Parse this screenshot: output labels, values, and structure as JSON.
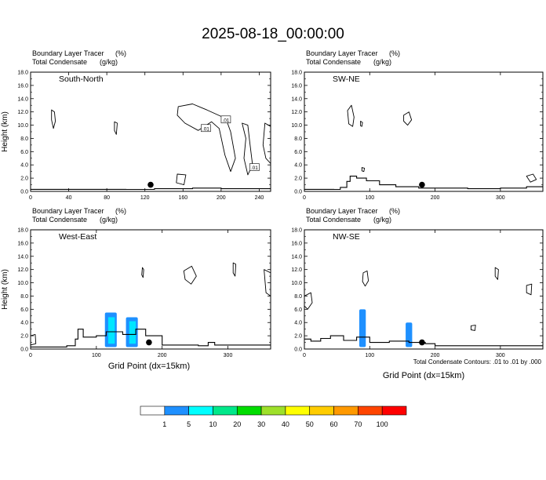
{
  "figure": {
    "title": "2025-08-18_00:00:00",
    "footer_note": "Total Condensate Contours: .01 to .01 by .000",
    "xlabel": "Grid Point (dx=15km)"
  },
  "colors": {
    "terrain": "#000000",
    "tracer_blue": "#1e90ff",
    "tracer_cyan": "#00e6ff"
  },
  "colorbar": {
    "labels": [
      "1",
      "5",
      "10",
      "20",
      "30",
      "40",
      "50",
      "60",
      "70",
      "100"
    ],
    "colors": [
      "#ffffff",
      "#1e90ff",
      "#00ffff",
      "#00e88a",
      "#00dd00",
      "#9ee02a",
      "#ffff00",
      "#ffcc00",
      "#ff9900",
      "#ff4400",
      "#ff0000"
    ]
  },
  "chart_data": [
    {
      "type": "area",
      "panel_label": "South-North",
      "subtitle_var1": "Boundary Layer Tracer",
      "subtitle_unit1": "(%)",
      "subtitle_var2": "Total Condensate",
      "subtitle_unit2": "(g/kg)",
      "ylabel": "Height (km)",
      "xlim": [
        0,
        252
      ],
      "ylim": [
        0,
        18
      ],
      "xticks": [
        0,
        40,
        80,
        120,
        160,
        200,
        240
      ],
      "yticks": [
        "0.0",
        "2.0",
        "4.0",
        "6.0",
        "8.0",
        "10.0",
        "12.0",
        "14.0",
        "16.0",
        "18.0"
      ],
      "terrain": [
        [
          0,
          0.3
        ],
        [
          100,
          0.3
        ],
        [
          130,
          0.4
        ],
        [
          170,
          0.5
        ],
        [
          200,
          0.4
        ],
        [
          252,
          0.5
        ]
      ],
      "marker": [
        126,
        1.0
      ],
      "contour_labels": [
        {
          "text": ".01",
          "x": 184,
          "y": 9.5
        },
        {
          "text": ".01",
          "x": 205,
          "y": 10.8
        },
        {
          "text": ".01",
          "x": 235,
          "y": 3.6
        }
      ],
      "clouds": [
        [
          [
            22,
            12.3
          ],
          [
            25,
            12.0
          ],
          [
            26,
            10.6
          ],
          [
            24,
            9.5
          ],
          [
            22,
            10.8
          ]
        ],
        [
          [
            88,
            10.5
          ],
          [
            91,
            10.3
          ],
          [
            90,
            8.6
          ],
          [
            88,
            9.2
          ]
        ],
        [
          [
            155,
            12.8
          ],
          [
            170,
            13.2
          ],
          [
            185,
            12.3
          ],
          [
            205,
            11.0
          ],
          [
            210,
            9.0
          ],
          [
            215,
            5.0
          ],
          [
            210,
            3.0
          ],
          [
            204,
            5.5
          ],
          [
            198,
            9.5
          ],
          [
            190,
            10.5
          ],
          [
            176,
            9.2
          ],
          [
            162,
            10.3
          ],
          [
            154,
            11.5
          ]
        ],
        [
          [
            222,
            10.3
          ],
          [
            226,
            8.0
          ],
          [
            224,
            5.0
          ],
          [
            228,
            2.5
          ],
          [
            233,
            4.0
          ],
          [
            230,
            7.5
          ],
          [
            228,
            10.0
          ]
        ],
        [
          [
            246,
            10.3
          ],
          [
            252,
            9.8
          ],
          [
            252,
            4.2
          ],
          [
            247,
            5.0
          ],
          [
            244,
            7.0
          ]
        ],
        [
          [
            154,
            2.6
          ],
          [
            163,
            2.5
          ],
          [
            161,
            1.0
          ],
          [
            153,
            1.3
          ]
        ]
      ],
      "fills": []
    },
    {
      "type": "area",
      "panel_label": "SW-NE",
      "subtitle_var1": "Boundary Layer Tracer",
      "subtitle_unit1": "(%)",
      "subtitle_var2": "Total Condensate",
      "subtitle_unit2": "(g/kg)",
      "ylabel": "",
      "xlim": [
        0,
        365
      ],
      "ylim": [
        0,
        18
      ],
      "xticks": [
        0,
        100,
        200,
        300
      ],
      "yticks": [
        "0.0",
        "2.0",
        "4.0",
        "6.0",
        "8.0",
        "10.0",
        "12.0",
        "14.0",
        "16.0",
        "18.0"
      ],
      "terrain": [
        [
          0,
          0.3
        ],
        [
          45,
          0.3
        ],
        [
          55,
          0.6
        ],
        [
          65,
          1.5
        ],
        [
          70,
          2.3
        ],
        [
          80,
          2.0
        ],
        [
          95,
          1.6
        ],
        [
          115,
          1.0
        ],
        [
          140,
          0.7
        ],
        [
          175,
          0.5
        ],
        [
          250,
          0.4
        ],
        [
          300,
          0.5
        ],
        [
          340,
          0.7
        ],
        [
          365,
          0.9
        ]
      ],
      "marker": [
        180,
        1.0
      ],
      "contour_labels": [],
      "clouds": [
        [
          [
            66,
            12.2
          ],
          [
            72,
            13.0
          ],
          [
            76,
            11.2
          ],
          [
            74,
            9.8
          ],
          [
            68,
            10.2
          ]
        ],
        [
          [
            152,
            11.5
          ],
          [
            160,
            12.0
          ],
          [
            164,
            10.8
          ],
          [
            158,
            10.0
          ],
          [
            152,
            10.6
          ]
        ],
        [
          [
            86,
            10.6
          ],
          [
            89,
            10.4
          ],
          [
            88,
            9.8
          ],
          [
            86,
            9.9
          ]
        ],
        [
          [
            340,
            2.3
          ],
          [
            350,
            2.6
          ],
          [
            355,
            1.8
          ],
          [
            346,
            1.4
          ]
        ],
        [
          [
            88,
            3.6
          ],
          [
            92,
            3.5
          ],
          [
            91,
            3.0
          ],
          [
            88,
            3.1
          ]
        ]
      ],
      "fills": []
    },
    {
      "type": "area",
      "panel_label": "West-East",
      "subtitle_var1": "Boundary Layer Tracer",
      "subtitle_unit1": "(%)",
      "subtitle_var2": "Total Condensate",
      "subtitle_unit2": "(g/kg)",
      "ylabel": "Height (km)",
      "xlim": [
        0,
        365
      ],
      "ylim": [
        0,
        18
      ],
      "xticks": [
        0,
        100,
        200,
        300
      ],
      "yticks": [
        "0.0",
        "2.0",
        "4.0",
        "6.0",
        "8.0",
        "10.0",
        "12.0",
        "14.0",
        "16.0",
        "18.0"
      ],
      "terrain": [
        [
          0,
          0.3
        ],
        [
          55,
          0.5
        ],
        [
          68,
          1.5
        ],
        [
          72,
          3.0
        ],
        [
          80,
          1.8
        ],
        [
          100,
          2.0
        ],
        [
          115,
          2.6
        ],
        [
          140,
          2.2
        ],
        [
          160,
          3.0
        ],
        [
          175,
          2.0
        ],
        [
          200,
          0.6
        ],
        [
          255,
          0.5
        ],
        [
          270,
          1.0
        ],
        [
          280,
          0.6
        ],
        [
          365,
          0.5
        ]
      ],
      "marker": [
        180,
        1.0
      ],
      "contour_labels": [],
      "clouds": [
        [
          [
            233,
            11.8
          ],
          [
            245,
            12.5
          ],
          [
            252,
            11.0
          ],
          [
            244,
            9.8
          ],
          [
            235,
            10.5
          ]
        ],
        [
          [
            170,
            12.3
          ],
          [
            172,
            12.0
          ],
          [
            171,
            10.8
          ],
          [
            169,
            11.2
          ]
        ],
        [
          [
            308,
            13.0
          ],
          [
            312,
            12.8
          ],
          [
            311,
            11.0
          ],
          [
            308,
            11.5
          ]
        ],
        [
          [
            355,
            12.0
          ],
          [
            365,
            11.5
          ],
          [
            365,
            8.0
          ],
          [
            358,
            8.5
          ]
        ],
        [
          [
            0,
            2.0
          ],
          [
            7,
            2.2
          ],
          [
            8,
            0.8
          ],
          [
            0,
            0.6
          ]
        ]
      ],
      "fills": [
        {
          "x0": 113,
          "x1": 131,
          "ytop": 5.5,
          "color": "tracer_blue",
          "inner": [
            118,
            128,
            4.8
          ]
        },
        {
          "x0": 145,
          "x1": 163,
          "ytop": 4.8,
          "color": "tracer_blue",
          "inner": [
            150,
            160,
            4.2
          ]
        }
      ]
    },
    {
      "type": "area",
      "panel_label": "NW-SE",
      "subtitle_var1": "Boundary Layer Tracer",
      "subtitle_unit1": "(%)",
      "subtitle_var2": "Total Condensate",
      "subtitle_unit2": "(g/kg)",
      "ylabel": "",
      "xlim": [
        0,
        365
      ],
      "ylim": [
        0,
        18
      ],
      "xticks": [
        0,
        100,
        200,
        300
      ],
      "yticks": [
        "0.0",
        "2.0",
        "4.0",
        "6.0",
        "8.0",
        "10.0",
        "12.0",
        "14.0",
        "16.0",
        "18.0"
      ],
      "terrain": [
        [
          0,
          1.5
        ],
        [
          10,
          1.2
        ],
        [
          25,
          1.6
        ],
        [
          40,
          2.0
        ],
        [
          60,
          1.3
        ],
        [
          80,
          1.8
        ],
        [
          100,
          1.0
        ],
        [
          130,
          1.2
        ],
        [
          160,
          1.0
        ],
        [
          185,
          0.8
        ],
        [
          200,
          0.5
        ],
        [
          365,
          0.5
        ]
      ],
      "marker": [
        180,
        1.0
      ],
      "contour_labels": [],
      "clouds": [
        [
          [
            90,
            11.5
          ],
          [
            96,
            11.8
          ],
          [
            98,
            10.3
          ],
          [
            93,
            9.5
          ],
          [
            89,
            10.2
          ]
        ],
        [
          [
            292,
            12.3
          ],
          [
            297,
            12.0
          ],
          [
            296,
            10.5
          ],
          [
            292,
            11.0
          ]
        ],
        [
          [
            340,
            9.6
          ],
          [
            348,
            9.8
          ],
          [
            347,
            8.2
          ],
          [
            340,
            8.5
          ]
        ],
        [
          [
            0,
            8.0
          ],
          [
            10,
            8.5
          ],
          [
            12,
            7.0
          ],
          [
            5,
            6.0
          ],
          [
            0,
            6.5
          ]
        ],
        [
          [
            255,
            3.5
          ],
          [
            262,
            3.6
          ],
          [
            261,
            2.8
          ],
          [
            255,
            2.9
          ]
        ]
      ],
      "fills": [
        {
          "x0": 84,
          "x1": 94,
          "ytop": 6.0,
          "color": "tracer_blue",
          "inner": null
        },
        {
          "x0": 155,
          "x1": 165,
          "ytop": 4.0,
          "color": "tracer_blue",
          "inner": null
        }
      ]
    }
  ]
}
